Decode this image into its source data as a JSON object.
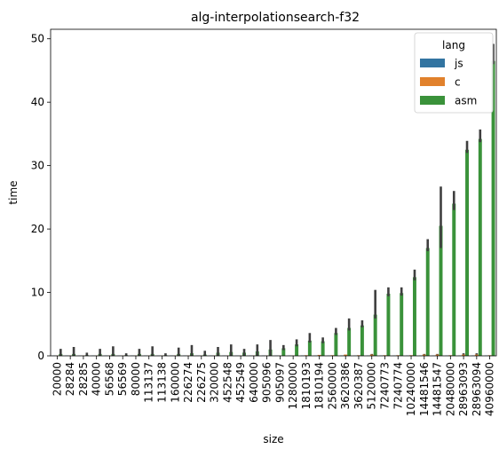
{
  "chart_data": {
    "type": "bar",
    "title": "alg-interpolationsearch-f32",
    "xlabel": "size",
    "ylabel": "time",
    "ylim": [
      0,
      51.5
    ],
    "yticks": [
      0,
      10,
      20,
      30,
      40,
      50
    ],
    "grid": false,
    "legend": {
      "title": "lang",
      "placement": "top-right"
    },
    "categories": [
      "20000",
      "28284",
      "28285",
      "40000",
      "56568",
      "56569",
      "80000",
      "113137",
      "113138",
      "160000",
      "226274",
      "226275",
      "320000",
      "452548",
      "452549",
      "640000",
      "905096",
      "905097",
      "1280000",
      "1810193",
      "1810194",
      "2560000",
      "3620386",
      "3620387",
      "5120000",
      "7240773",
      "7240774",
      "10240000",
      "14481546",
      "14481547",
      "20480000",
      "28963093",
      "28963094",
      "40960000"
    ],
    "series": [
      {
        "name": "js",
        "color": "#3274a1",
        "values": [
          0.05,
          0.05,
          0.04,
          0.05,
          0.05,
          0.04,
          0.05,
          0.05,
          0.04,
          0.05,
          0.05,
          0.04,
          0.05,
          0.05,
          0.04,
          0.05,
          0.05,
          0.04,
          0.05,
          0.05,
          0.04,
          0.05,
          0.05,
          0.04,
          0.05,
          0.05,
          0.04,
          0.05,
          0.05,
          0.04,
          0.05,
          0.06,
          0.06,
          0.06
        ],
        "error_low": [
          0,
          0,
          0,
          0,
          0,
          0,
          0,
          0,
          0,
          0,
          0,
          0,
          0,
          0,
          0,
          0,
          0,
          0,
          0,
          0,
          0,
          0,
          0,
          0,
          0,
          0,
          0,
          0,
          0,
          0,
          0,
          0,
          0,
          0
        ],
        "error_high": [
          0,
          0,
          0,
          0,
          0,
          0,
          0,
          0,
          0,
          0,
          0,
          0,
          0,
          0,
          0,
          0,
          0,
          0,
          0,
          0,
          0,
          0,
          0,
          0,
          0,
          0,
          0,
          0,
          0,
          0,
          0,
          0,
          0,
          0
        ]
      },
      {
        "name": "c",
        "color": "#e1812c",
        "values": [
          0.05,
          0.05,
          0.04,
          0.05,
          0.05,
          0.04,
          0.05,
          0.05,
          0.04,
          0.05,
          0.05,
          0.04,
          0.05,
          0.05,
          0.04,
          0.05,
          0.05,
          0.04,
          0.05,
          0.1,
          0.15,
          0.1,
          0.2,
          0.1,
          0.2,
          0.1,
          0.1,
          0.1,
          0.2,
          0.2,
          0.1,
          0.2,
          0.2,
          0.1
        ],
        "error_low": [
          0,
          0,
          0,
          0,
          0,
          0,
          0,
          0,
          0,
          0,
          0,
          0,
          0,
          0,
          0,
          0,
          0,
          0,
          0,
          0,
          0,
          0,
          0,
          0,
          0,
          0,
          0,
          0,
          0,
          0,
          0,
          0,
          0,
          0
        ],
        "error_high": [
          0,
          0,
          0,
          0,
          0,
          0,
          0,
          0,
          0,
          0,
          0,
          0,
          0,
          0,
          0,
          0,
          0,
          0,
          0,
          0,
          0,
          0,
          0,
          0,
          0.1,
          0,
          0,
          0,
          0.1,
          0.1,
          0,
          0.2,
          0.2,
          0
        ]
      },
      {
        "name": "asm",
        "color": "#3a923a",
        "values": [
          0.3,
          0.3,
          0.1,
          0.3,
          0.3,
          0.1,
          0.3,
          0.3,
          0.1,
          0.3,
          0.4,
          0.2,
          0.5,
          0.6,
          0.5,
          0.7,
          1.0,
          1.2,
          1.8,
          2.4,
          2.3,
          3.6,
          4.4,
          4.8,
          6.5,
          9.8,
          9.9,
          12.4,
          17.0,
          20.5,
          24.0,
          32.5,
          34.2,
          46.5
        ],
        "error_low": [
          0.3,
          0.3,
          0.1,
          0.3,
          0.3,
          0.1,
          0.3,
          0.3,
          0.1,
          0.3,
          0.4,
          0.2,
          0.5,
          0.6,
          0.5,
          0.7,
          1.0,
          0.3,
          0.3,
          0.3,
          0.3,
          0.3,
          0.4,
          0.3,
          0.6,
          0.4,
          0.4,
          0.5,
          0.5,
          3.5,
          1.0,
          0.5,
          0.5,
          0.5
        ],
        "error_high": [
          0.8,
          1.1,
          0.4,
          0.8,
          1.2,
          0.3,
          0.8,
          1.2,
          0.3,
          1.0,
          1.3,
          0.6,
          0.9,
          1.2,
          0.6,
          1.1,
          1.5,
          0.5,
          0.8,
          1.2,
          0.6,
          0.8,
          1.5,
          0.8,
          3.9,
          1.0,
          0.9,
          1.2,
          1.4,
          6.2,
          2.0,
          1.4,
          1.5,
          2.7
        ]
      }
    ]
  }
}
